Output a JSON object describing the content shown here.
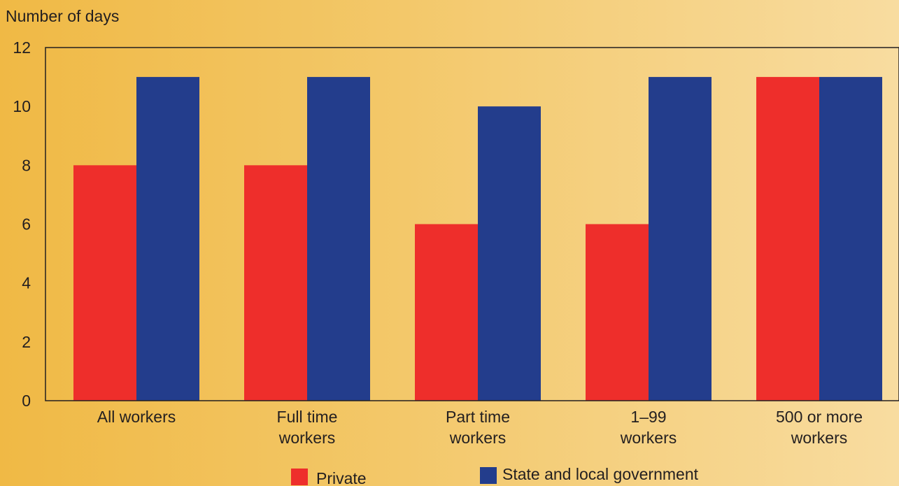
{
  "chart_data": {
    "type": "bar",
    "ylabel": "Number of days",
    "ylim": [
      0,
      12
    ],
    "yticks": [
      0,
      2,
      4,
      6,
      8,
      10,
      12
    ],
    "grid": false,
    "legend_position": "bottom",
    "categories": [
      "All workers",
      "Full time workers",
      "Part time workers",
      "1–99 workers",
      "500 or more workers"
    ],
    "category_lines": [
      [
        "All workers"
      ],
      [
        "Full time",
        "workers"
      ],
      [
        "Part time",
        "workers"
      ],
      [
        "1–99",
        "workers"
      ],
      [
        "500 or more",
        "workers"
      ]
    ],
    "series": [
      {
        "name": "Private",
        "color": "#ee2e2b",
        "values": [
          8,
          8,
          6,
          6,
          11
        ]
      },
      {
        "name": "State and local government",
        "color": "#233d8c",
        "values": [
          11,
          11,
          10,
          11,
          11
        ]
      }
    ]
  }
}
